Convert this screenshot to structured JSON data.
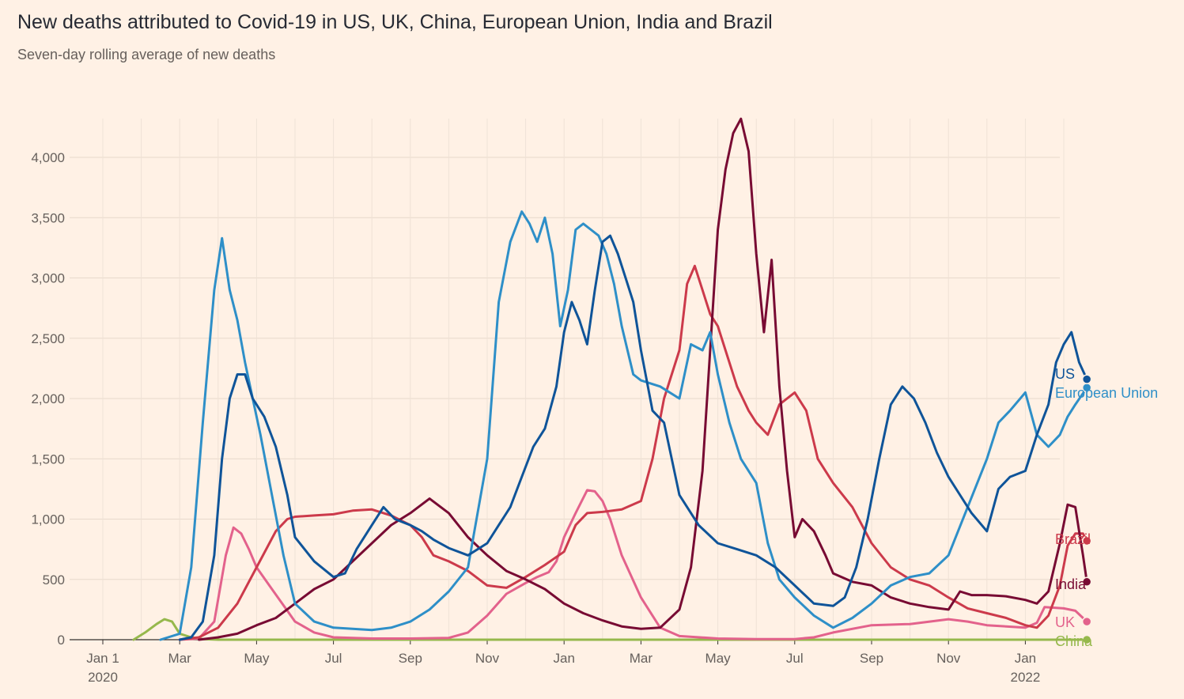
{
  "header": {
    "title": "New deaths attributed to Covid-19 in US, UK, China, European Union, India and Brazil",
    "subtitle": "Seven-day rolling average of new deaths"
  },
  "chart_data": {
    "type": "line",
    "title": "New deaths attributed to Covid-19 in US, UK, China, European Union, India and Brazil",
    "subtitle": "Seven-day rolling average of new deaths",
    "ylim": [
      0,
      4300
    ],
    "yticks": [
      0,
      500,
      1000,
      1500,
      2000,
      2500,
      3000,
      3500,
      4000
    ],
    "ytick_labels": [
      "0",
      "500",
      "1,000",
      "1,500",
      "2,000",
      "2,500",
      "3,000",
      "3,500",
      "4,000"
    ],
    "xlim": [
      0,
      26
    ],
    "xticks": [
      {
        "m": 0,
        "label": "Jan 1",
        "label2": "2020"
      },
      {
        "m": 2,
        "label": "Mar"
      },
      {
        "m": 4,
        "label": "May"
      },
      {
        "m": 6,
        "label": "Jul"
      },
      {
        "m": 8,
        "label": "Sep"
      },
      {
        "m": 10,
        "label": "Nov"
      },
      {
        "m": 12,
        "label": "Jan"
      },
      {
        "m": 14,
        "label": "Mar"
      },
      {
        "m": 16,
        "label": "May"
      },
      {
        "m": 18,
        "label": "Jul"
      },
      {
        "m": 20,
        "label": "Sep"
      },
      {
        "m": 22,
        "label": "Nov"
      },
      {
        "m": 24,
        "label": "Jan",
        "label2": "2022"
      }
    ],
    "x_unit": "months since Jan 1 2020",
    "grid": true,
    "legend": "direct labels at line ends",
    "series": [
      {
        "name": "China",
        "color": "#96b84c",
        "x": [
          0.8,
          1.1,
          1.4,
          1.6,
          1.8,
          2.0,
          2.3,
          2.6,
          3.0,
          5.0,
          10.0,
          20.0,
          25.6
        ],
        "values": [
          0,
          60,
          130,
          170,
          150,
          50,
          20,
          5,
          0,
          0,
          0,
          0,
          0
        ]
      },
      {
        "name": "UK",
        "color": "#e3628c",
        "x": [
          2.0,
          2.5,
          2.9,
          3.2,
          3.4,
          3.6,
          3.8,
          4.0,
          4.4,
          4.8,
          5.0,
          5.5,
          6.0,
          7.0,
          8.0,
          9.0,
          9.5,
          10.0,
          10.5,
          11.0,
          11.3,
          11.6,
          11.8,
          12.0,
          12.3,
          12.6,
          12.8,
          13.0,
          13.2,
          13.5,
          14.0,
          14.5,
          15.0,
          16.0,
          17.0,
          18.0,
          18.5,
          19.0,
          20.0,
          21.0,
          22.0,
          22.5,
          23.0,
          23.5,
          24.0,
          24.3,
          24.5,
          25.0,
          25.3,
          25.6
        ],
        "values": [
          0,
          10,
          150,
          700,
          930,
          880,
          750,
          600,
          420,
          240,
          150,
          60,
          20,
          10,
          10,
          15,
          60,
          200,
          380,
          470,
          520,
          560,
          650,
          850,
          1050,
          1240,
          1230,
          1150,
          1000,
          700,
          350,
          100,
          30,
          10,
          5,
          5,
          20,
          60,
          120,
          130,
          170,
          150,
          120,
          110,
          100,
          140,
          270,
          260,
          240,
          150
        ]
      },
      {
        "name": "Brazil",
        "color": "#cc3a4b",
        "x": [
          2.0,
          2.5,
          3.0,
          3.5,
          4.0,
          4.5,
          4.8,
          5.0,
          5.5,
          6.0,
          6.5,
          7.0,
          7.5,
          8.0,
          8.3,
          8.6,
          9.0,
          9.5,
          10.0,
          10.5,
          11.0,
          11.5,
          12.0,
          12.3,
          12.6,
          13.0,
          13.5,
          14.0,
          14.3,
          14.6,
          15.0,
          15.2,
          15.4,
          15.6,
          15.8,
          16.0,
          16.2,
          16.5,
          16.8,
          17.0,
          17.3,
          17.6,
          18.0,
          18.3,
          18.6,
          19.0,
          19.5,
          20.0,
          20.5,
          21.0,
          21.5,
          22.0,
          22.5,
          23.0,
          23.5,
          24.0,
          24.3,
          24.6,
          24.9,
          25.1,
          25.3,
          25.5,
          25.6
        ],
        "values": [
          0,
          20,
          100,
          300,
          600,
          900,
          1000,
          1020,
          1030,
          1040,
          1070,
          1080,
          1030,
          950,
          850,
          700,
          650,
          570,
          450,
          430,
          520,
          620,
          730,
          950,
          1050,
          1060,
          1080,
          1150,
          1500,
          2000,
          2400,
          2950,
          3100,
          2900,
          2700,
          2600,
          2400,
          2100,
          1900,
          1800,
          1700,
          1950,
          2050,
          1900,
          1500,
          1300,
          1100,
          800,
          600,
          500,
          450,
          350,
          260,
          220,
          180,
          120,
          100,
          200,
          450,
          780,
          880,
          880,
          820
        ]
      },
      {
        "name": "India",
        "color": "#780b33",
        "x": [
          2.5,
          3.0,
          3.5,
          4.0,
          4.5,
          5.0,
          5.5,
          6.0,
          6.5,
          7.0,
          7.5,
          8.0,
          8.5,
          9.0,
          9.5,
          10.0,
          10.5,
          11.0,
          11.5,
          12.0,
          12.5,
          13.0,
          13.5,
          14.0,
          14.5,
          15.0,
          15.3,
          15.6,
          15.8,
          16.0,
          16.2,
          16.4,
          16.6,
          16.8,
          17.0,
          17.2,
          17.4,
          17.6,
          17.8,
          18.0,
          18.2,
          18.5,
          18.8,
          19.0,
          19.5,
          20.0,
          20.5,
          21.0,
          21.5,
          22.0,
          22.3,
          22.6,
          23.0,
          23.5,
          24.0,
          24.3,
          24.6,
          24.9,
          25.1,
          25.3,
          25.4,
          25.5,
          25.6
        ],
        "values": [
          0,
          20,
          50,
          120,
          180,
          300,
          420,
          500,
          650,
          800,
          950,
          1050,
          1170,
          1050,
          850,
          700,
          570,
          500,
          420,
          300,
          220,
          160,
          110,
          90,
          100,
          250,
          600,
          1400,
          2400,
          3400,
          3900,
          4200,
          4320,
          4050,
          3200,
          2550,
          3150,
          2100,
          1400,
          850,
          1000,
          900,
          700,
          550,
          480,
          450,
          350,
          300,
          270,
          250,
          400,
          370,
          370,
          360,
          330,
          300,
          400,
          800,
          1120,
          1100,
          900,
          700,
          480
        ]
      },
      {
        "name": "European Union",
        "color": "#2e8fc8",
        "x": [
          1.5,
          2.0,
          2.3,
          2.6,
          2.9,
          3.1,
          3.3,
          3.5,
          3.7,
          3.9,
          4.1,
          4.4,
          4.7,
          5.0,
          5.5,
          6.0,
          6.5,
          7.0,
          7.5,
          8.0,
          8.5,
          9.0,
          9.5,
          10.0,
          10.3,
          10.6,
          10.9,
          11.1,
          11.3,
          11.5,
          11.7,
          11.9,
          12.1,
          12.3,
          12.5,
          12.7,
          12.9,
          13.1,
          13.3,
          13.5,
          13.8,
          14.0,
          14.5,
          15.0,
          15.3,
          15.6,
          15.8,
          16.0,
          16.3,
          16.6,
          17.0,
          17.3,
          17.6,
          18.0,
          18.5,
          19.0,
          19.5,
          20.0,
          20.5,
          21.0,
          21.5,
          22.0,
          22.5,
          23.0,
          23.3,
          23.6,
          24.0,
          24.3,
          24.6,
          24.9,
          25.1,
          25.3,
          25.6
        ],
        "values": [
          0,
          50,
          600,
          1800,
          2900,
          3330,
          2900,
          2650,
          2300,
          2000,
          1700,
          1200,
          700,
          300,
          150,
          100,
          90,
          80,
          100,
          150,
          250,
          400,
          600,
          1500,
          2800,
          3300,
          3550,
          3450,
          3300,
          3500,
          3200,
          2600,
          2900,
          3400,
          3450,
          3400,
          3350,
          3200,
          2950,
          2600,
          2200,
          2150,
          2100,
          2000,
          2450,
          2400,
          2550,
          2200,
          1800,
          1500,
          1300,
          800,
          500,
          350,
          200,
          100,
          180,
          300,
          450,
          520,
          550,
          700,
          1100,
          1500,
          1800,
          1900,
          2050,
          1700,
          1600,
          1700,
          1850,
          1950,
          2090
        ]
      },
      {
        "name": "US",
        "color": "#0f5499",
        "x": [
          2.0,
          2.3,
          2.6,
          2.9,
          3.1,
          3.3,
          3.5,
          3.7,
          3.9,
          4.2,
          4.5,
          4.8,
          5.0,
          5.5,
          6.0,
          6.3,
          6.6,
          7.0,
          7.3,
          7.6,
          8.0,
          8.3,
          8.6,
          9.0,
          9.5,
          10.0,
          10.3,
          10.6,
          10.9,
          11.2,
          11.5,
          11.8,
          12.0,
          12.2,
          12.4,
          12.6,
          12.8,
          13.0,
          13.2,
          13.4,
          13.6,
          13.8,
          14.0,
          14.3,
          14.6,
          15.0,
          15.5,
          16.0,
          16.5,
          17.0,
          17.5,
          18.0,
          18.5,
          19.0,
          19.3,
          19.6,
          19.9,
          20.2,
          20.5,
          20.8,
          21.1,
          21.4,
          21.7,
          22.0,
          22.3,
          22.6,
          23.0,
          23.3,
          23.6,
          24.0,
          24.3,
          24.6,
          24.8,
          25.0,
          25.2,
          25.4,
          25.6
        ],
        "values": [
          0,
          20,
          150,
          700,
          1500,
          2000,
          2200,
          2200,
          2000,
          1850,
          1600,
          1200,
          850,
          650,
          520,
          550,
          750,
          950,
          1100,
          1000,
          950,
          900,
          830,
          760,
          700,
          800,
          950,
          1100,
          1350,
          1600,
          1750,
          2100,
          2550,
          2800,
          2650,
          2450,
          2900,
          3300,
          3350,
          3200,
          3000,
          2800,
          2400,
          1900,
          1800,
          1200,
          950,
          800,
          750,
          700,
          600,
          450,
          300,
          280,
          350,
          600,
          1000,
          1500,
          1950,
          2100,
          2000,
          1800,
          1550,
          1350,
          1200,
          1050,
          900,
          1250,
          1350,
          1400,
          1700,
          1950,
          2300,
          2450,
          2550,
          2300,
          2160
        ]
      }
    ]
  }
}
